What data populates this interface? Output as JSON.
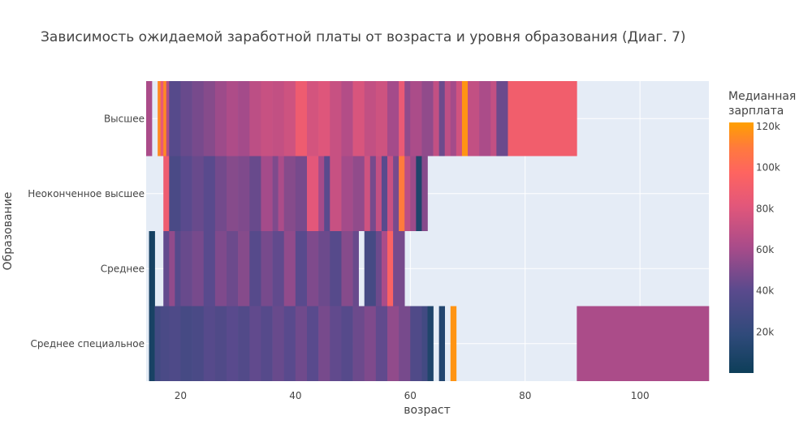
{
  "chart_data": {
    "type": "heatmap",
    "title": "Зависимость ожидаемой заработной платы от возраста и уровня образования (Диаг. 7)",
    "xlabel": "возраст",
    "ylabel": "Образование",
    "xlim": [
      14,
      112
    ],
    "x_ticks": [
      20,
      40,
      60,
      80,
      100
    ],
    "x_tick_labels": [
      "20",
      "40",
      "60",
      "80",
      "100"
    ],
    "categories": [
      "Высшее",
      "Неоконченное высшее",
      "Среднее",
      "Среднее специальное"
    ],
    "colorbar": {
      "title_lines": [
        "Медианная",
        "зарплата"
      ],
      "min": 0,
      "max": 122000,
      "ticks": [
        20000,
        40000,
        60000,
        80000,
        100000,
        120000
      ],
      "tick_labels": [
        "20k",
        "40k",
        "60k",
        "80k",
        "100k",
        "120k"
      ],
      "colorscale": [
        [
          0.0,
          "#0d3e59"
        ],
        [
          0.15,
          "#2f4a7a"
        ],
        [
          0.33,
          "#5a4a8d"
        ],
        [
          0.5,
          "#a84b8a"
        ],
        [
          0.67,
          "#e3577a"
        ],
        [
          0.8,
          "#fe6460"
        ],
        [
          0.9,
          "#ff7a3d"
        ],
        [
          1.0,
          "#ffa000"
        ]
      ]
    },
    "grid": true,
    "series": [
      {
        "name": "Высшее",
        "cells": [
          {
            "x0": 14.0,
            "x1": 15.0,
            "v": 62000
          },
          {
            "x0": 16.0,
            "x1": 16.5,
            "v": 115000
          },
          {
            "x0": 16.5,
            "x1": 17.0,
            "v": 85000
          },
          {
            "x0": 17.0,
            "x1": 17.5,
            "v": 115000
          },
          {
            "x0": 17.5,
            "x1": 18.0,
            "v": 65000
          },
          {
            "x0": 18.0,
            "x1": 20.0,
            "v": 38000
          },
          {
            "x0": 20.0,
            "x1": 22.0,
            "v": 44000
          },
          {
            "x0": 22.0,
            "x1": 24.0,
            "v": 48000
          },
          {
            "x0": 24.0,
            "x1": 26.0,
            "v": 52000
          },
          {
            "x0": 26.0,
            "x1": 28.0,
            "v": 58000
          },
          {
            "x0": 28.0,
            "x1": 30.0,
            "v": 63000
          },
          {
            "x0": 30.0,
            "x1": 32.0,
            "v": 60000
          },
          {
            "x0": 32.0,
            "x1": 34.0,
            "v": 68000
          },
          {
            "x0": 34.0,
            "x1": 36.0,
            "v": 72000
          },
          {
            "x0": 36.0,
            "x1": 38.0,
            "v": 70000
          },
          {
            "x0": 38.0,
            "x1": 40.0,
            "v": 74000
          },
          {
            "x0": 40.0,
            "x1": 42.0,
            "v": 88000
          },
          {
            "x0": 42.0,
            "x1": 44.0,
            "v": 76000
          },
          {
            "x0": 44.0,
            "x1": 46.0,
            "v": 80000
          },
          {
            "x0": 46.0,
            "x1": 48.0,
            "v": 72000
          },
          {
            "x0": 48.0,
            "x1": 50.0,
            "v": 65000
          },
          {
            "x0": 50.0,
            "x1": 52.0,
            "v": 78000
          },
          {
            "x0": 52.0,
            "x1": 54.0,
            "v": 70000
          },
          {
            "x0": 54.0,
            "x1": 56.0,
            "v": 74000
          },
          {
            "x0": 56.0,
            "x1": 58.0,
            "v": 60000
          },
          {
            "x0": 58.0,
            "x1": 59.0,
            "v": 85000
          },
          {
            "x0": 59.0,
            "x1": 60.0,
            "v": 55000
          },
          {
            "x0": 60.0,
            "x1": 62.0,
            "v": 62000
          },
          {
            "x0": 62.0,
            "x1": 64.0,
            "v": 55000
          },
          {
            "x0": 64.0,
            "x1": 65.0,
            "v": 70000
          },
          {
            "x0": 65.0,
            "x1": 66.0,
            "v": 45000
          },
          {
            "x0": 66.0,
            "x1": 67.0,
            "v": 68000
          },
          {
            "x0": 67.0,
            "x1": 68.0,
            "v": 60000
          },
          {
            "x0": 68.0,
            "x1": 69.0,
            "v": 75000
          },
          {
            "x0": 69.0,
            "x1": 70.0,
            "v": 118000
          },
          {
            "x0": 70.0,
            "x1": 72.0,
            "v": 70000
          },
          {
            "x0": 72.0,
            "x1": 74.0,
            "v": 62000
          },
          {
            "x0": 74.0,
            "x1": 75.0,
            "v": 70000
          },
          {
            "x0": 75.0,
            "x1": 77.0,
            "v": 45000
          },
          {
            "x0": 77.0,
            "x1": 89.0,
            "v": 90000
          }
        ]
      },
      {
        "name": "Неоконченное высшее",
        "cells": [
          {
            "x0": 17.0,
            "x1": 18.0,
            "v": 88000
          },
          {
            "x0": 18.0,
            "x1": 20.0,
            "v": 32000
          },
          {
            "x0": 20.0,
            "x1": 22.0,
            "v": 40000
          },
          {
            "x0": 22.0,
            "x1": 24.0,
            "v": 44000
          },
          {
            "x0": 24.0,
            "x1": 26.0,
            "v": 40000
          },
          {
            "x0": 26.0,
            "x1": 28.0,
            "v": 47000
          },
          {
            "x0": 28.0,
            "x1": 30.0,
            "v": 52000
          },
          {
            "x0": 30.0,
            "x1": 32.0,
            "v": 50000
          },
          {
            "x0": 32.0,
            "x1": 34.0,
            "v": 44000
          },
          {
            "x0": 34.0,
            "x1": 36.0,
            "v": 60000
          },
          {
            "x0": 36.0,
            "x1": 37.0,
            "v": 50000
          },
          {
            "x0": 37.0,
            "x1": 38.0,
            "v": 62000
          },
          {
            "x0": 38.0,
            "x1": 40.0,
            "v": 52000
          },
          {
            "x0": 40.0,
            "x1": 42.0,
            "v": 48000
          },
          {
            "x0": 42.0,
            "x1": 44.0,
            "v": 82000
          },
          {
            "x0": 44.0,
            "x1": 45.0,
            "v": 60000
          },
          {
            "x0": 45.0,
            "x1": 46.0,
            "v": 40000
          },
          {
            "x0": 46.0,
            "x1": 48.0,
            "v": 72000
          },
          {
            "x0": 48.0,
            "x1": 50.0,
            "v": 60000
          },
          {
            "x0": 50.0,
            "x1": 52.0,
            "v": 55000
          },
          {
            "x0": 52.0,
            "x1": 53.0,
            "v": 74000
          },
          {
            "x0": 53.0,
            "x1": 54.0,
            "v": 48000
          },
          {
            "x0": 54.0,
            "x1": 55.0,
            "v": 70000
          },
          {
            "x0": 55.0,
            "x1": 56.0,
            "v": 40000
          },
          {
            "x0": 56.0,
            "x1": 57.0,
            "v": 72000
          },
          {
            "x0": 57.0,
            "x1": 58.0,
            "v": 48000
          },
          {
            "x0": 58.0,
            "x1": 59.0,
            "v": 110000
          },
          {
            "x0": 59.0,
            "x1": 60.0,
            "v": 68000
          },
          {
            "x0": 60.0,
            "x1": 61.0,
            "v": 58000
          },
          {
            "x0": 61.0,
            "x1": 62.0,
            "v": 10000
          },
          {
            "x0": 62.0,
            "x1": 63.0,
            "v": 52000
          }
        ]
      },
      {
        "name": "Среднее",
        "cells": [
          {
            "x0": 14.5,
            "x1": 15.5,
            "v": 5000
          },
          {
            "x0": 17.0,
            "x1": 18.0,
            "v": 42000
          },
          {
            "x0": 18.0,
            "x1": 19.0,
            "v": 55000
          },
          {
            "x0": 19.0,
            "x1": 20.0,
            "v": 38000
          },
          {
            "x0": 20.0,
            "x1": 22.0,
            "v": 44000
          },
          {
            "x0": 22.0,
            "x1": 24.0,
            "v": 48000
          },
          {
            "x0": 24.0,
            "x1": 26.0,
            "v": 40000
          },
          {
            "x0": 26.0,
            "x1": 28.0,
            "v": 50000
          },
          {
            "x0": 28.0,
            "x1": 30.0,
            "v": 45000
          },
          {
            "x0": 30.0,
            "x1": 32.0,
            "v": 52000
          },
          {
            "x0": 32.0,
            "x1": 34.0,
            "v": 38000
          },
          {
            "x0": 34.0,
            "x1": 36.0,
            "v": 48000
          },
          {
            "x0": 36.0,
            "x1": 38.0,
            "v": 42000
          },
          {
            "x0": 38.0,
            "x1": 40.0,
            "v": 55000
          },
          {
            "x0": 40.0,
            "x1": 42.0,
            "v": 40000
          },
          {
            "x0": 42.0,
            "x1": 44.0,
            "v": 50000
          },
          {
            "x0": 44.0,
            "x1": 46.0,
            "v": 45000
          },
          {
            "x0": 46.0,
            "x1": 48.0,
            "v": 38000
          },
          {
            "x0": 48.0,
            "x1": 50.0,
            "v": 52000
          },
          {
            "x0": 50.0,
            "x1": 51.0,
            "v": 44000
          },
          {
            "x0": 52.0,
            "x1": 54.0,
            "v": 30000
          },
          {
            "x0": 54.0,
            "x1": 55.0,
            "v": 45000
          },
          {
            "x0": 55.0,
            "x1": 56.0,
            "v": 62000
          },
          {
            "x0": 56.0,
            "x1": 57.0,
            "v": 95000
          },
          {
            "x0": 57.0,
            "x1": 59.0,
            "v": 48000
          }
        ]
      },
      {
        "name": "Среднее специальное",
        "cells": [
          {
            "x0": 14.5,
            "x1": 15.5,
            "v": 6000
          },
          {
            "x0": 15.5,
            "x1": 16.5,
            "v": 28000
          },
          {
            "x0": 16.5,
            "x1": 18.0,
            "v": 32000
          },
          {
            "x0": 18.0,
            "x1": 20.0,
            "v": 34000
          },
          {
            "x0": 20.0,
            "x1": 22.0,
            "v": 30000
          },
          {
            "x0": 22.0,
            "x1": 24.0,
            "v": 32000
          },
          {
            "x0": 24.0,
            "x1": 26.0,
            "v": 38000
          },
          {
            "x0": 26.0,
            "x1": 28.0,
            "v": 35000
          },
          {
            "x0": 28.0,
            "x1": 30.0,
            "v": 40000
          },
          {
            "x0": 30.0,
            "x1": 32.0,
            "v": 36000
          },
          {
            "x0": 32.0,
            "x1": 34.0,
            "v": 42000
          },
          {
            "x0": 34.0,
            "x1": 36.0,
            "v": 38000
          },
          {
            "x0": 36.0,
            "x1": 38.0,
            "v": 44000
          },
          {
            "x0": 38.0,
            "x1": 40.0,
            "v": 40000
          },
          {
            "x0": 40.0,
            "x1": 42.0,
            "v": 46000
          },
          {
            "x0": 42.0,
            "x1": 44.0,
            "v": 40000
          },
          {
            "x0": 44.0,
            "x1": 46.0,
            "v": 48000
          },
          {
            "x0": 46.0,
            "x1": 48.0,
            "v": 42000
          },
          {
            "x0": 48.0,
            "x1": 50.0,
            "v": 38000
          },
          {
            "x0": 50.0,
            "x1": 52.0,
            "v": 45000
          },
          {
            "x0": 52.0,
            "x1": 54.0,
            "v": 50000
          },
          {
            "x0": 54.0,
            "x1": 56.0,
            "v": 42000
          },
          {
            "x0": 56.0,
            "x1": 58.0,
            "v": 55000
          },
          {
            "x0": 58.0,
            "x1": 60.0,
            "v": 48000
          },
          {
            "x0": 60.0,
            "x1": 62.0,
            "v": 35000
          },
          {
            "x0": 62.0,
            "x1": 63.0,
            "v": 28000
          },
          {
            "x0": 63.0,
            "x1": 64.0,
            "v": 10000
          },
          {
            "x0": 65.0,
            "x1": 66.0,
            "v": 12000
          },
          {
            "x0": 67.0,
            "x1": 68.0,
            "v": 118000
          },
          {
            "x0": 89.0,
            "x1": 112.0,
            "v": 62000
          }
        ]
      }
    ]
  }
}
